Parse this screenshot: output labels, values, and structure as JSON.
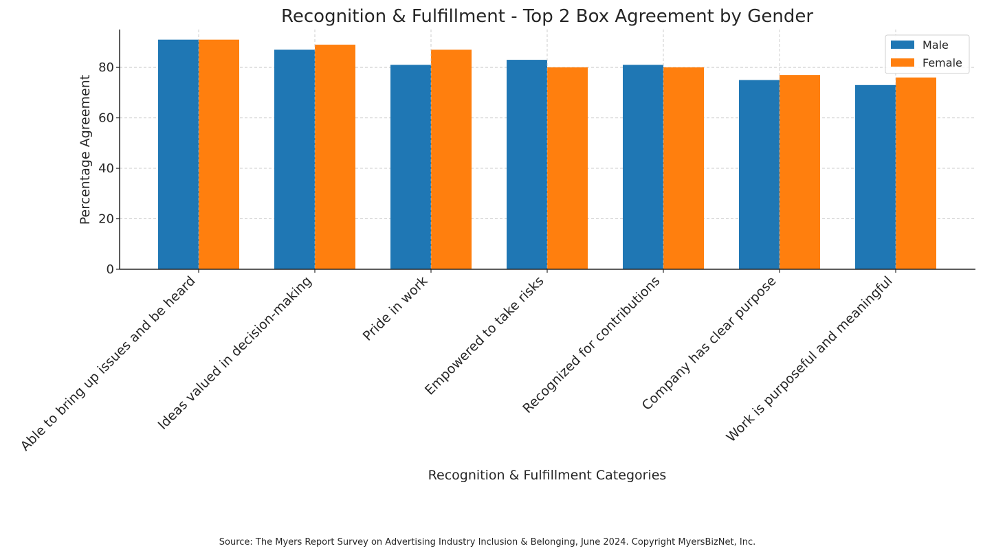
{
  "chart_data": {
    "type": "bar",
    "title": "Recognition & Fulfillment - Top 2 Box Agreement by Gender",
    "xlabel": "Recognition & Fulfillment Categories",
    "ylabel": "Percentage Agreement",
    "ylim": [
      0,
      95
    ],
    "yticks": [
      0,
      20,
      40,
      60,
      80
    ],
    "grid": true,
    "legend_position": "top-right",
    "categories": [
      "Able to bring up issues and be heard",
      "Ideas valued in decision-making",
      "Pride in work",
      "Empowered to take risks",
      "Recognized for contributions",
      "Company has clear purpose",
      "Work is purposeful and meaningful"
    ],
    "series": [
      {
        "name": "Male",
        "color": "#1f77b4",
        "values": [
          91,
          87,
          81,
          83,
          81,
          75,
          73
        ]
      },
      {
        "name": "Female",
        "color": "#ff7f0e",
        "values": [
          91,
          89,
          87,
          80,
          80,
          77,
          76
        ]
      }
    ],
    "source": "Source: The Myers Report Survey on Advertising Industry Inclusion & Belonging, June 2024. Copyright MyersBizNet, Inc."
  }
}
